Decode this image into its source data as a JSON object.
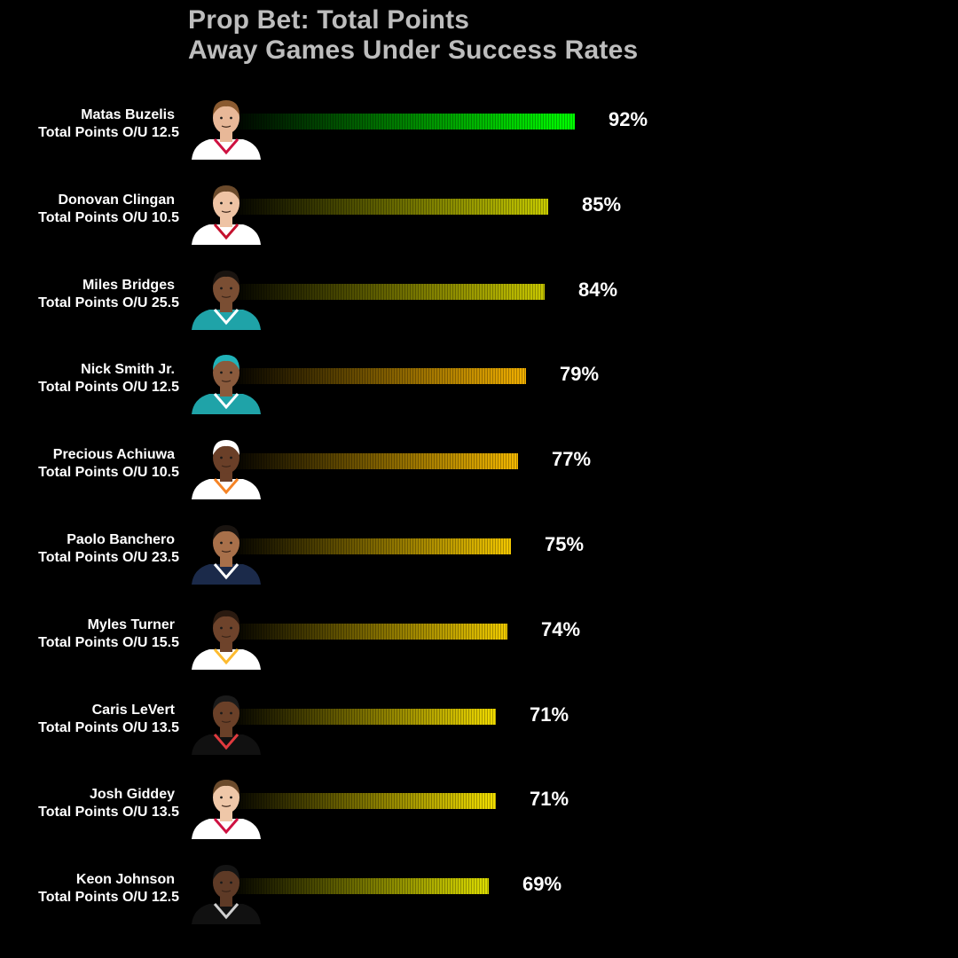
{
  "title": {
    "line1": "Prop Bet: Total Points",
    "line2": "Away Games Under Success Rates"
  },
  "chart_data": {
    "type": "bar",
    "orientation": "horizontal",
    "title": "Prop Bet: Total Points Away Games Under Success Rates",
    "xlim": [
      0,
      100
    ],
    "categories": [
      "Matas Buzelis",
      "Donovan Clingan",
      "Miles Bridges",
      "Nick Smith Jr.",
      "Precious Achiuwa",
      "Paolo Banchero",
      "Myles Turner",
      "Caris LeVert",
      "Josh Giddey",
      "Keon Johnson"
    ],
    "values": [
      92,
      85,
      84,
      79,
      77,
      75,
      74,
      71,
      71,
      69
    ]
  },
  "players": [
    {
      "name": "Matas Buzelis",
      "line": "Total Points O/U 12.5",
      "pct_label": "92%",
      "value": 92,
      "color": "#00ff00",
      "jersey": "#ffffff",
      "trim": "#ce1141",
      "skin": "#e8b898",
      "hair": "#8a5a30"
    },
    {
      "name": "Donovan Clingan",
      "line": "Total Points O/U 10.5",
      "pct_label": "85%",
      "value": 85,
      "color": "#c8cc00",
      "jersey": "#ffffff",
      "trim": "#c4122e",
      "skin": "#eec3a4",
      "hair": "#6b4a2b"
    },
    {
      "name": "Miles Bridges",
      "line": "Total Points O/U 25.5",
      "pct_label": "84%",
      "value": 84,
      "color": "#c9c800",
      "jersey": "#1fa3a8",
      "trim": "#ffffff",
      "skin": "#7a4e33",
      "hair": "#1a1410"
    },
    {
      "name": "Nick Smith Jr.",
      "line": "Total Points O/U 12.5",
      "pct_label": "79%",
      "value": 79,
      "color": "#f2b000",
      "jersey": "#1fa3a8",
      "trim": "#ffffff",
      "skin": "#8a5a3c",
      "hair": "#20b2b8"
    },
    {
      "name": "Precious Achiuwa",
      "line": "Total Points O/U 10.5",
      "pct_label": "77%",
      "value": 77,
      "color": "#f4b800",
      "jersey": "#ffffff",
      "trim": "#f58426",
      "skin": "#6a3f28",
      "hair": "#ffffff"
    },
    {
      "name": "Paolo Banchero",
      "line": "Total Points O/U 23.5",
      "pct_label": "75%",
      "value": 75,
      "color": "#f4c800",
      "jersey": "#1b2a4a",
      "trim": "#ffffff",
      "skin": "#a8704a",
      "hair": "#1a1410"
    },
    {
      "name": "Myles Turner",
      "line": "Total Points O/U 15.5",
      "pct_label": "74%",
      "value": 74,
      "color": "#f1cc00",
      "jersey": "#ffffff",
      "trim": "#fdbb30",
      "skin": "#6e432b",
      "hair": "#2a1a10"
    },
    {
      "name": "Caris LeVert",
      "line": "Total Points O/U 13.5",
      "pct_label": "71%",
      "value": 71,
      "color": "#f2dc00",
      "jersey": "#111111",
      "trim": "#e03a3e",
      "skin": "#6a4028",
      "hair": "#1a1a1a"
    },
    {
      "name": "Josh Giddey",
      "line": "Total Points O/U 13.5",
      "pct_label": "71%",
      "value": 71,
      "color": "#f4e000",
      "jersey": "#ffffff",
      "trim": "#ce1141",
      "skin": "#efc7a8",
      "hair": "#6b4a2b"
    },
    {
      "name": "Keon Johnson",
      "line": "Total Points O/U 12.5",
      "pct_label": "69%",
      "value": 69,
      "color": "#dede00",
      "jersey": "#111111",
      "trim": "#cfcfcf",
      "skin": "#5e3a26",
      "hair": "#141414"
    }
  ]
}
